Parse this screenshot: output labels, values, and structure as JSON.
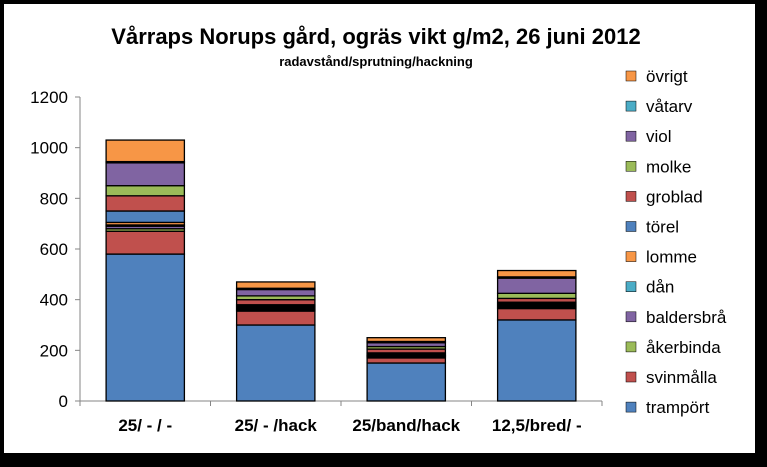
{
  "chart_data": {
    "type": "bar",
    "stacked": true,
    "title": "Vårraps Norups gård, ogräs vikt g/m2, 26 juni 2012",
    "subtitle": "radavstånd/sprutning/hackning",
    "xlabel": "",
    "ylabel": "",
    "ylim": [
      0,
      1200
    ],
    "yticks": [
      "0",
      "200",
      "400",
      "600",
      "800",
      "1000",
      "1200"
    ],
    "grid": false,
    "legend_position": "right",
    "categories": [
      "25/ - / -",
      "25/ - /hack",
      "25/band/hack",
      "12,5/bred/ -"
    ],
    "series": [
      {
        "name": "trampört",
        "color": "#4F81BD",
        "values": [
          580,
          300,
          150,
          320
        ]
      },
      {
        "name": "svinmålla",
        "color": "#C0504D",
        "values": [
          90,
          55,
          20,
          45
        ]
      },
      {
        "name": "åkerbinda",
        "color": "#9BBB59",
        "values": [
          10,
          5,
          5,
          5
        ]
      },
      {
        "name": "baldersbrå",
        "color": "#8064A2",
        "values": [
          10,
          5,
          3,
          5
        ]
      },
      {
        "name": "dån",
        "color": "#4BACC6",
        "values": [
          5,
          5,
          2,
          5
        ]
      },
      {
        "name": "lomme",
        "color": "#F79646",
        "values": [
          10,
          5,
          5,
          5
        ]
      },
      {
        "name": "törel",
        "color": "#4F81BD",
        "values": [
          45,
          5,
          5,
          5
        ]
      },
      {
        "name": "groblad",
        "color": "#C0504D",
        "values": [
          60,
          20,
          15,
          15
        ]
      },
      {
        "name": "molke",
        "color": "#9BBB59",
        "values": [
          40,
          15,
          10,
          20
        ]
      },
      {
        "name": "viol",
        "color": "#8064A2",
        "values": [
          90,
          25,
          15,
          60
        ]
      },
      {
        "name": "våtarv",
        "color": "#4BACC6",
        "values": [
          5,
          5,
          5,
          5
        ]
      },
      {
        "name": "övrigt",
        "color": "#F79646",
        "values": [
          85,
          25,
          15,
          25
        ]
      }
    ]
  }
}
